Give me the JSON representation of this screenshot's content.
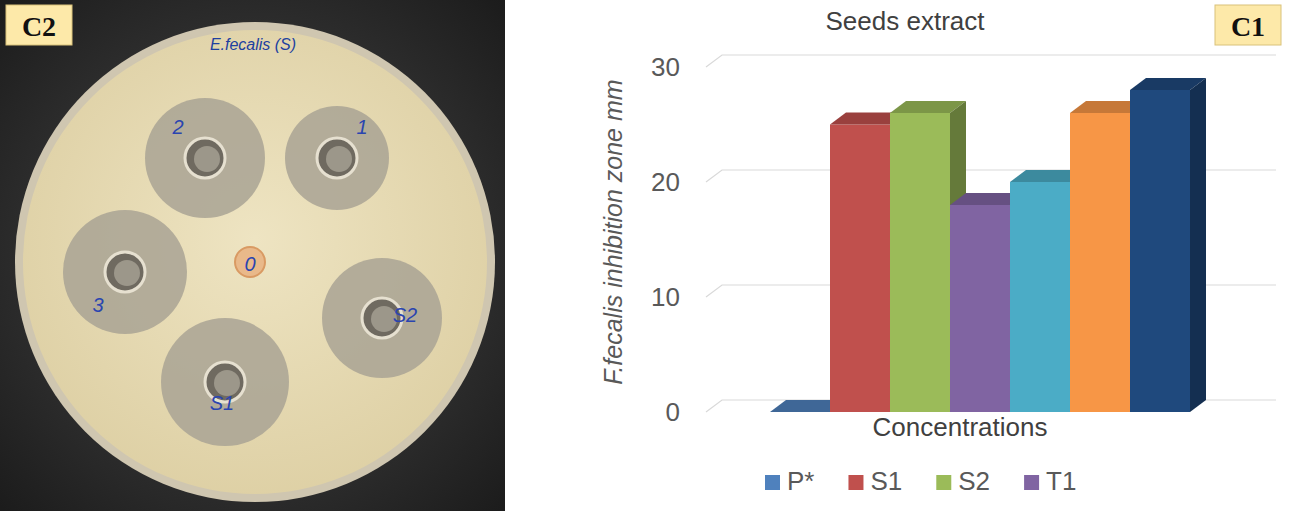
{
  "panel_labels": {
    "photo": "C2",
    "chart": "C1"
  },
  "photo": {
    "plate_label": "E.fecalis (S)",
    "wells": [
      {
        "label": "2"
      },
      {
        "label": "1"
      },
      {
        "label": "3"
      },
      {
        "label": "0"
      },
      {
        "label": "S2"
      },
      {
        "label": "S1"
      }
    ]
  },
  "chart_data": {
    "type": "bar",
    "title": "Seeds extract",
    "x_label": "Concentrations",
    "y_label": "F.fecalis inhibition zone mm",
    "categories": [
      "P*",
      "S1",
      "S2",
      "T1",
      null,
      null,
      null
    ],
    "values": [
      0,
      25,
      26,
      18,
      20,
      26,
      28
    ],
    "colors": [
      "#4f81bd",
      "#c0504d",
      "#9bbb59",
      "#8064a2",
      "#4bacc6",
      "#f79646",
      "#1f497d"
    ],
    "ylim": [
      0,
      30
    ],
    "yticks": [
      0,
      10,
      20,
      30
    ],
    "grid": true,
    "legend": "bottom",
    "tick_labels": "y"
  }
}
